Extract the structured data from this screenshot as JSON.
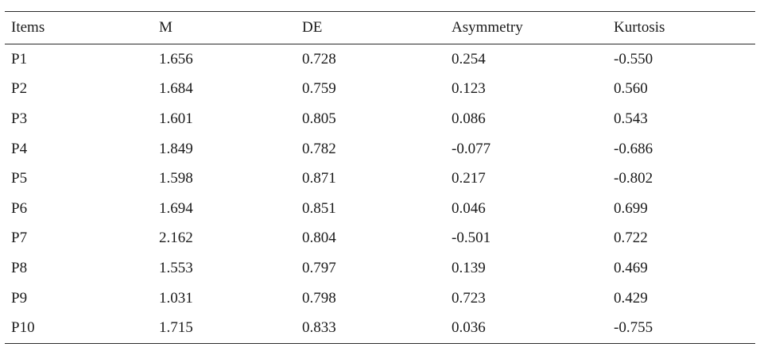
{
  "table": {
    "headers": [
      "Items",
      "M",
      "DE",
      "Asymmetry",
      "Kurtosis"
    ],
    "rows": [
      [
        "P1",
        "1.656",
        "0.728",
        "0.254",
        "-0.550"
      ],
      [
        "P2",
        "1.684",
        "0.759",
        "0.123",
        "0.560"
      ],
      [
        "P3",
        "1.601",
        "0.805",
        "0.086",
        "0.543"
      ],
      [
        "P4",
        "1.849",
        "0.782",
        "-0.077",
        "-0.686"
      ],
      [
        "P5",
        "1.598",
        "0.871",
        "0.217",
        "-0.802"
      ],
      [
        "P6",
        "1.694",
        "0.851",
        "0.046",
        "0.699"
      ],
      [
        "P7",
        "2.162",
        "0.804",
        "-0.501",
        "0.722"
      ],
      [
        "P8",
        "1.553",
        "0.797",
        "0.139",
        "0.469"
      ],
      [
        "P9",
        "1.031",
        "0.798",
        "0.723",
        "0.429"
      ],
      [
        "P10",
        "1.715",
        "0.833",
        "0.036",
        "-0.755"
      ]
    ]
  }
}
